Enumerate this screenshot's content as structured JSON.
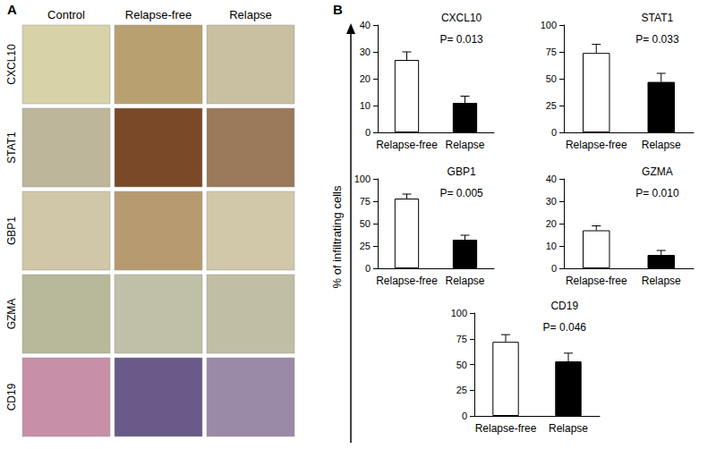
{
  "panel_a": {
    "label": "A",
    "columns": [
      "Control",
      "Relapse-free",
      "Relapse"
    ],
    "rows": [
      "CXCL10",
      "STAT1",
      "GBP1",
      "GZMA",
      "CD19"
    ]
  },
  "panel_b": {
    "label": "B",
    "ylabel": "% of infiltrating cells"
  },
  "chart_data": [
    {
      "type": "bar",
      "title": "CXCL10",
      "annotation": "P= 0.013",
      "categories": [
        "Relapse-free",
        "Relapse"
      ],
      "values": [
        27,
        11
      ],
      "errors": [
        3,
        2.5
      ],
      "colors": [
        "#ffffff",
        "#000000"
      ],
      "ylim": [
        0,
        40
      ],
      "yticks": [
        0,
        10,
        20,
        30,
        40
      ],
      "grid": false
    },
    {
      "type": "bar",
      "title": "STAT1",
      "annotation": "P= 0.033",
      "categories": [
        "Relapse-free",
        "Relapse"
      ],
      "values": [
        74,
        47
      ],
      "errors": [
        8,
        8
      ],
      "colors": [
        "#ffffff",
        "#000000"
      ],
      "ylim": [
        0,
        100
      ],
      "yticks": [
        0,
        25,
        50,
        75,
        100
      ],
      "grid": false
    },
    {
      "type": "bar",
      "title": "GBP1",
      "annotation": "P= 0.005",
      "categories": [
        "Relapse-free",
        "Relapse"
      ],
      "values": [
        78,
        32
      ],
      "errors": [
        5,
        5
      ],
      "colors": [
        "#ffffff",
        "#000000"
      ],
      "ylim": [
        0,
        100
      ],
      "yticks": [
        0,
        25,
        50,
        75,
        100
      ],
      "grid": false
    },
    {
      "type": "bar",
      "title": "GZMA",
      "annotation": "P= 0.010",
      "categories": [
        "Relapse-free",
        "Relapse"
      ],
      "values": [
        17,
        6
      ],
      "errors": [
        2,
        2
      ],
      "colors": [
        "#ffffff",
        "#000000"
      ],
      "ylim": [
        0,
        40
      ],
      "yticks": [
        0,
        10,
        20,
        30,
        40
      ],
      "grid": false
    },
    {
      "type": "bar",
      "title": "CD19",
      "annotation": "P= 0.046",
      "categories": [
        "Relapse-free",
        "Relapse"
      ],
      "values": [
        72,
        53
      ],
      "errors": [
        7,
        8
      ],
      "colors": [
        "#ffffff",
        "#000000"
      ],
      "ylim": [
        0,
        100
      ],
      "yticks": [
        0,
        25,
        50,
        75,
        100
      ],
      "grid": false
    }
  ]
}
